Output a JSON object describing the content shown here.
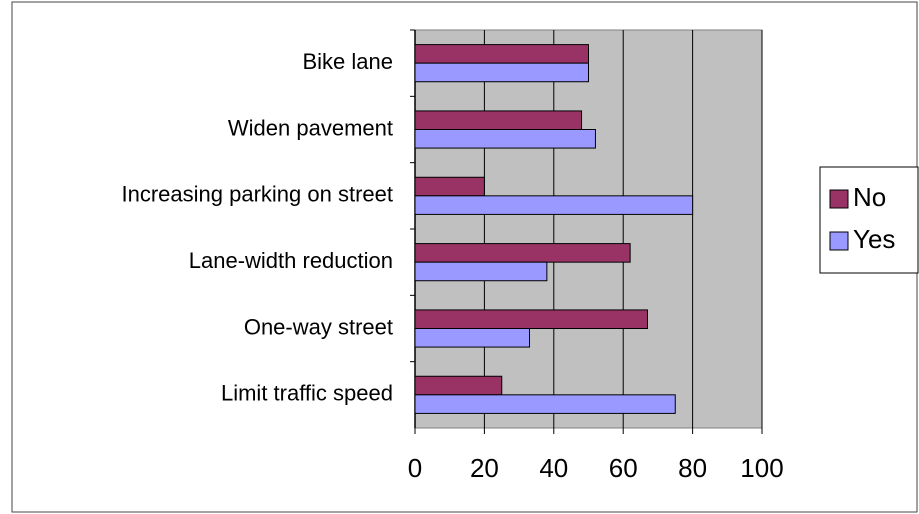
{
  "chart_data": {
    "type": "bar",
    "orientation": "horizontal",
    "categories": [
      "Bike lane",
      "Widen pavement",
      "Increasing parking on street",
      "Lane-width reduction",
      "One-way street",
      "Limit traffic speed"
    ],
    "series": [
      {
        "name": "No",
        "color": "#993366",
        "values": [
          50,
          48,
          20,
          62,
          67,
          25
        ]
      },
      {
        "name": "Yes",
        "color": "#9999ff",
        "values": [
          50,
          52,
          80,
          38,
          33,
          75
        ]
      }
    ],
    "xlim": [
      0,
      100
    ],
    "xticks": [
      0,
      20,
      40,
      60,
      80,
      100
    ],
    "grid": true,
    "legend": "right"
  }
}
